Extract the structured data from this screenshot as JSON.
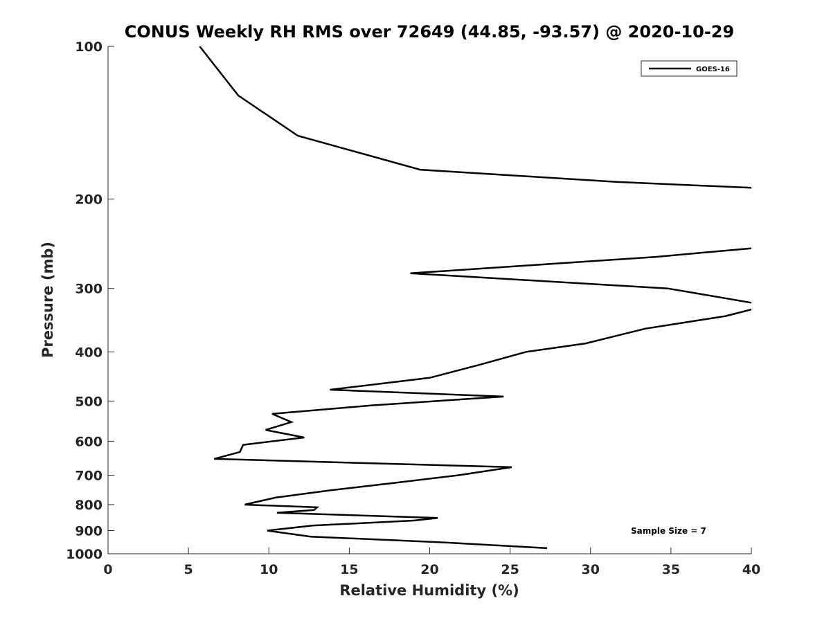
{
  "chart_data": {
    "type": "line",
    "title": "CONUS Weekly RH RMS over 72649 (44.85, -93.57) @ 2020-10-29",
    "xlabel": "Relative Humidity (%)",
    "ylabel": "Pressure (mb)",
    "xlim": [
      0,
      40
    ],
    "ylim": [
      100,
      1000
    ],
    "yscale": "log",
    "xticks": [
      0,
      5,
      10,
      15,
      20,
      25,
      30,
      35,
      40
    ],
    "xtick_labels": [
      "0",
      "5",
      "10",
      "15",
      "20",
      "25",
      "30",
      "35",
      "40"
    ],
    "yticks": [
      100,
      200,
      300,
      400,
      500,
      600,
      700,
      800,
      900,
      1000
    ],
    "ytick_labels": [
      "100",
      "200",
      "300",
      "400",
      "500",
      "600",
      "700",
      "800",
      "900",
      "1000"
    ],
    "grid": false,
    "legend": {
      "entries": [
        "GOES-16"
      ],
      "placement": "top-right"
    },
    "annotation": "Sample Size = 7",
    "series": [
      {
        "name": "GOES-16",
        "color": "#000000",
        "x": [
          5.7,
          8.1,
          11.8,
          19.4,
          31.6,
          40.0,
          null,
          40.0,
          34.0,
          18.8,
          34.8,
          40.0,
          null,
          40.0,
          38.4,
          33.4,
          29.7,
          26.0,
          23.0,
          20.0,
          13.8,
          24.6,
          16.4,
          10.2,
          11.4,
          9.8,
          12.2,
          8.4,
          8.2,
          6.6,
          25.1,
          21.8,
          17.8,
          13.8,
          10.4,
          8.5,
          13.0,
          12.8,
          10.5,
          20.5,
          19.0,
          12.7,
          9.9,
          12.6,
          21.0,
          27.3
        ],
        "y": [
          100,
          125,
          150,
          175,
          185,
          190,
          null,
          250,
          260,
          280,
          300,
          320,
          null,
          330,
          340,
          360,
          385,
          400,
          425,
          450,
          475,
          490,
          510,
          530,
          550,
          570,
          590,
          610,
          630,
          650,
          675,
          700,
          725,
          750,
          775,
          800,
          810,
          820,
          830,
          850,
          860,
          880,
          900,
          925,
          950,
          975
        ]
      }
    ]
  }
}
